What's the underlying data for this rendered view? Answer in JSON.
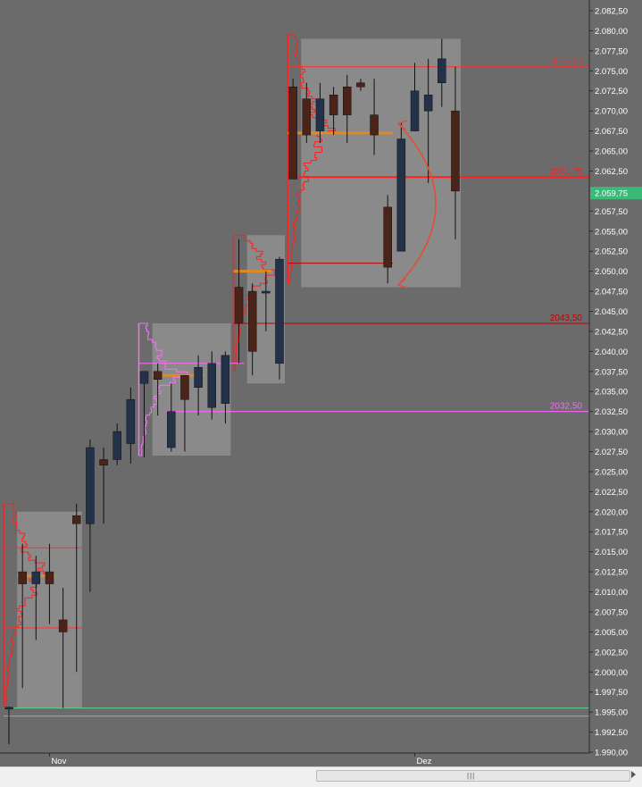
{
  "chart_data": {
    "type": "candlestick",
    "y_axis": {
      "min": 1990.0,
      "max": 2082.5,
      "tick_step": 2.5,
      "tick_labels": [
        "2.082,50",
        "2.080,00",
        "2.077,50",
        "2.075,00",
        "2.072,50",
        "2.070,00",
        "2.067,50",
        "2.065,00",
        "2.062,50",
        "2.060,00",
        "2.057,50",
        "2.055,00",
        "2.052,50",
        "2.050,00",
        "2.047,50",
        "2.045,00",
        "2.042,50",
        "2.040,00",
        "2.037,50",
        "2.035,00",
        "2.032,50",
        "2.030,00",
        "2.027,50",
        "2.025,00",
        "2.022,50",
        "2.020,00",
        "2.017,50",
        "2.015,00",
        "2.012,50",
        "2.010,00",
        "2.007,50",
        "2.005,00",
        "2.002,50",
        "2.000,00",
        "1.997,50",
        "1.995,00",
        "1.992,50",
        "1.990,00"
      ]
    },
    "x_axis": {
      "labels": [
        {
          "text": "Nov",
          "bar_index": 3
        },
        {
          "text": "Dez",
          "bar_index": 30
        }
      ]
    },
    "current_price": {
      "value": 2059.75,
      "label": "2.059,75"
    },
    "candles": [
      {
        "o": 1995.5,
        "h": 1995.7,
        "l": 1991.0,
        "c": 1995.6
      },
      {
        "o": 2012.5,
        "h": 2016.0,
        "l": 1998.0,
        "c": 2011.0
      },
      {
        "o": 2011.0,
        "h": 2014.5,
        "l": 2004.0,
        "c": 2012.5
      },
      {
        "o": 2012.5,
        "h": 2016.0,
        "l": 2006.0,
        "c": 2011.0
      },
      {
        "o": 2006.5,
        "h": 2010.5,
        "l": 1995.5,
        "c": 2005.0
      },
      {
        "o": 2019.5,
        "h": 2021.0,
        "l": 2000.0,
        "c": 2018.5
      },
      {
        "o": 2018.5,
        "h": 2029.0,
        "l": 2010.0,
        "c": 2028.0
      },
      {
        "o": 2026.5,
        "h": 2028.0,
        "l": 2018.5,
        "c": 2025.8
      },
      {
        "o": 2026.5,
        "h": 2031.0,
        "l": 2025.8,
        "c": 2030.0
      },
      {
        "o": 2028.5,
        "h": 2035.5,
        "l": 2026.0,
        "c": 2034.0
      },
      {
        "o": 2036.0,
        "h": 2037.5,
        "l": 2026.8,
        "c": 2037.5
      },
      {
        "o": 2037.5,
        "h": 2038.5,
        "l": 2032.0,
        "c": 2036.5
      },
      {
        "o": 2028.0,
        "h": 2036.0,
        "l": 2027.5,
        "c": 2032.5
      },
      {
        "o": 2037.0,
        "h": 2037.0,
        "l": 2027.5,
        "c": 2034.0
      },
      {
        "o": 2035.5,
        "h": 2039.5,
        "l": 2032.0,
        "c": 2038.0
      },
      {
        "o": 2033.0,
        "h": 2040.0,
        "l": 2031.5,
        "c": 2038.5
      },
      {
        "o": 2033.5,
        "h": 2040.0,
        "l": 2031.0,
        "c": 2039.5
      },
      {
        "o": 2048.0,
        "h": 2054.0,
        "l": 2038.5,
        "c": 2043.5
      },
      {
        "o": 2047.5,
        "h": 2048.5,
        "l": 2037.0,
        "c": 2040.0
      },
      {
        "o": 2047.5,
        "h": 2050.0,
        "l": 2042.5,
        "c": 2047.5
      },
      {
        "o": 2038.5,
        "h": 2051.8,
        "l": 2036.5,
        "c": 2051.5
      },
      {
        "o": 2073.0,
        "h": 2074.0,
        "l": 2061.5,
        "c": 2061.5
      },
      {
        "o": 2071.5,
        "h": 2073.5,
        "l": 2066.0,
        "c": 2067.0
      },
      {
        "o": 2067.5,
        "h": 2073.5,
        "l": 2066.0,
        "c": 2071.5
      },
      {
        "o": 2072.0,
        "h": 2073.0,
        "l": 2067.0,
        "c": 2069.5
      },
      {
        "o": 2073.0,
        "h": 2074.5,
        "l": 2066.0,
        "c": 2069.5
      },
      {
        "o": 2073.5,
        "h": 2074.0,
        "l": 2072.5,
        "c": 2073.0
      },
      {
        "o": 2069.5,
        "h": 2074.0,
        "l": 2064.5,
        "c": 2067.0
      },
      {
        "o": 2058.0,
        "h": 2059.5,
        "l": 2048.5,
        "c": 2050.5
      },
      {
        "o": 2052.5,
        "h": 2068.5,
        "l": 2052.5,
        "c": 2066.5
      },
      {
        "o": 2067.5,
        "h": 2076.0,
        "l": 2067.5,
        "c": 2072.5
      },
      {
        "o": 2070.0,
        "h": 2076.5,
        "l": 2061.0,
        "c": 2072.0
      },
      {
        "o": 2073.5,
        "h": 2079.0,
        "l": 2070.5,
        "c": 2076.5
      },
      {
        "o": 2070.0,
        "h": 2075.5,
        "l": 2054.0,
        "c": 2060.0
      }
    ],
    "levels": [
      {
        "value": 2075.5,
        "label": "2075,50",
        "color": "#ff3030",
        "labeled": true,
        "from_bar": 21
      },
      {
        "value": 2061.75,
        "label": "2061,75",
        "color": "#ff2020",
        "labeled": true,
        "from_bar": 21
      },
      {
        "value": 2043.5,
        "label": "2043,50",
        "color": "#c00000",
        "labeled": true,
        "from_bar": 17
      },
      {
        "value": 2032.5,
        "label": "2032,50",
        "color": "#ff66ff",
        "labeled": true,
        "from_bar": 12
      },
      {
        "value": 2051.0,
        "label": "",
        "color": "#c00000",
        "labeled": false,
        "from_bar": 21,
        "to_bar": 28
      },
      {
        "value": 2038.5,
        "label": "",
        "color": "#ff66ff",
        "labeled": false,
        "from_bar": 10,
        "to_bar": 17
      },
      {
        "value": 2015.5,
        "label": "",
        "color": "#ff3030",
        "labeled": false,
        "from_bar": 0,
        "to_bar": 5
      },
      {
        "value": 2005.5,
        "label": "",
        "color": "#ff3030",
        "labeled": false,
        "from_bar": 0,
        "to_bar": 5
      },
      {
        "value": 1995.5,
        "label": "",
        "color": "#66cc88",
        "labeled": false,
        "from_bar": 0
      },
      {
        "value": 1994.5,
        "label": "",
        "color": "#66cc88",
        "labeled": false,
        "from_bar": 0
      }
    ],
    "poc_levels": [
      {
        "value": 2012.0,
        "from_bar": 1,
        "to_bar": 3
      },
      {
        "value": 2037.0,
        "from_bar": 11,
        "to_bar": 14
      },
      {
        "value": 2050.0,
        "from_bar": 17,
        "to_bar": 19
      },
      {
        "value": 2067.25,
        "from_bar": 21,
        "to_bar": 28
      }
    ],
    "value_areas": [
      {
        "from_bar": 1,
        "to_bar": 5,
        "high": 2020.0,
        "low": 1995.5
      },
      {
        "from_bar": 11,
        "to_bar": 16,
        "high": 2043.5,
        "low": 2027.0
      },
      {
        "from_bar": 18,
        "to_bar": 20,
        "high": 2054.5,
        "low": 2036.0
      },
      {
        "from_bar": 22,
        "to_bar": 33,
        "high": 2079.0,
        "low": 2048.0
      }
    ],
    "volume_profiles": [
      {
        "from_bar": 0,
        "high": 2021.0,
        "low": 1995.5,
        "peak_price": 2012.0,
        "color": "#ff2020"
      },
      {
        "from_bar": 10,
        "high": 2043.5,
        "low": 2027.0,
        "peak_price": 2037.0,
        "color": "#ee77ee"
      },
      {
        "from_bar": 17,
        "high": 2054.5,
        "low": 2037.5,
        "peak_price": 2050.0,
        "color": "#ff2020"
      },
      {
        "from_bar": 21,
        "high": 2079.5,
        "low": 2048.5,
        "peak_price": 2067.25,
        "color": "#ff2020"
      }
    ],
    "annotations": [
      {
        "type": "curved-double-arrow",
        "from": 2068.0,
        "to": 2048.5,
        "color": "#e05030"
      }
    ]
  },
  "colors": {
    "background": "#6b6b6b",
    "up_candle": "#233248",
    "down_candle": "#4a2418",
    "wick": "#111111",
    "value_area": "#8c8c8c",
    "poc": "#e08a20",
    "axis_text": "#ffffff",
    "current_price_badge": "#3cb878"
  }
}
